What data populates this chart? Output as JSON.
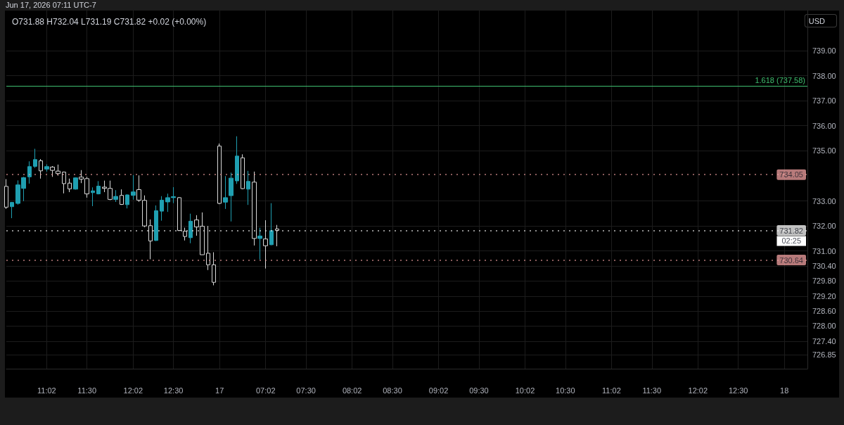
{
  "chart_data": {
    "type": "candlestick",
    "title": "O731.88 H732.04 L731.19 C731.82 +0.02 (+0.00%)",
    "categories": [
      null,
      null,
      null,
      null,
      null,
      null,
      null,
      "11:02",
      null,
      null,
      null,
      null,
      null,
      null,
      "11:30",
      null,
      null,
      null,
      null,
      null,
      null,
      null,
      "12:02",
      null,
      null,
      null,
      null,
      null,
      null,
      "12:30",
      null,
      null,
      null,
      null,
      null,
      null,
      null,
      "17",
      null,
      null,
      null,
      null,
      null,
      null,
      null,
      "07:02",
      null,
      null,
      null,
      null,
      null,
      null,
      "07:30",
      null,
      null,
      null,
      null,
      null,
      null,
      null,
      "08:02",
      null,
      null,
      null,
      null,
      null,
      null,
      "08:30",
      null,
      null,
      null,
      null,
      null,
      null,
      null,
      "09:02",
      null,
      null,
      null,
      null,
      null,
      null,
      "09:30",
      null,
      null,
      null,
      null,
      null,
      null,
      null,
      "10:02",
      null,
      null,
      null,
      null,
      null,
      null,
      "10:30",
      null,
      null,
      null,
      null,
      null,
      null,
      null,
      "11:02",
      null,
      null,
      null,
      null,
      null,
      null,
      "11:30",
      null,
      null,
      null,
      null,
      null,
      null,
      null,
      "12:02",
      null,
      null,
      null,
      null,
      null,
      null,
      "12:30",
      null,
      null,
      null,
      null,
      null,
      null,
      null,
      "18",
      null,
      null,
      null,
      null
    ],
    "ohlc": [
      [
        733.58,
        733.87,
        732.68,
        732.75
      ],
      [
        732.77,
        732.96,
        732.31,
        732.94
      ],
      [
        732.9,
        733.82,
        732.85,
        733.64
      ],
      [
        733.5,
        733.96,
        732.99,
        733.93
      ],
      [
        733.96,
        734.58,
        733.69,
        734.37
      ],
      [
        734.38,
        735.08,
        734.32,
        734.65
      ],
      [
        734.6,
        734.67,
        733.89,
        734.2
      ],
      [
        734.27,
        734.46,
        734.17,
        734.37
      ],
      [
        734.35,
        734.39,
        733.96,
        734.22
      ],
      [
        734.19,
        734.45,
        734.01,
        734.09
      ],
      [
        734.15,
        734.17,
        733.3,
        733.69
      ],
      [
        733.71,
        733.89,
        733.35,
        733.48
      ],
      [
        733.47,
        733.94,
        733.45,
        733.92
      ],
      [
        733.95,
        734.23,
        733.71,
        733.87
      ],
      [
        733.89,
        733.96,
        733.13,
        733.28
      ],
      [
        733.33,
        733.54,
        732.79,
        733.4
      ],
      [
        733.28,
        733.79,
        733.26,
        733.59
      ],
      [
        733.55,
        733.81,
        733.35,
        733.5
      ],
      [
        733.5,
        733.81,
        733.03,
        733.06
      ],
      [
        733.06,
        733.43,
        732.96,
        733.18
      ],
      [
        733.22,
        733.46,
        732.84,
        732.86
      ],
      [
        732.85,
        733.26,
        732.7,
        733.24
      ],
      [
        733.22,
        734.03,
        733.05,
        733.36
      ],
      [
        733.45,
        734.02,
        732.96,
        733.03
      ],
      [
        733.02,
        733.22,
        731.95,
        732.0
      ],
      [
        732.01,
        732.26,
        730.67,
        731.4
      ],
      [
        731.42,
        732.82,
        731.4,
        732.61
      ],
      [
        732.59,
        733.19,
        732.21,
        733.03
      ],
      [
        732.96,
        733.29,
        732.56,
        733.13
      ],
      [
        733.13,
        733.55,
        732.91,
        733.17
      ],
      [
        733.13,
        733.15,
        731.79,
        731.82
      ],
      [
        731.79,
        731.93,
        731.42,
        731.58
      ],
      [
        731.53,
        732.49,
        731.31,
        732.19
      ],
      [
        732.24,
        732.43,
        731.61,
        731.96
      ],
      [
        731.99,
        732.54,
        730.85,
        730.85
      ],
      [
        730.91,
        732.0,
        730.24,
        730.45
      ],
      [
        730.45,
        730.95,
        729.63,
        729.75
      ],
      [
        735.19,
        735.29,
        732.87,
        732.9
      ],
      [
        732.95,
        733.99,
        732.68,
        733.13
      ],
      [
        733.21,
        734.13,
        732.18,
        733.91
      ],
      [
        733.8,
        735.58,
        733.68,
        734.79
      ],
      [
        734.72,
        734.86,
        733.47,
        733.49
      ],
      [
        733.47,
        734.2,
        732.84,
        733.78
      ],
      [
        733.75,
        734.17,
        731.22,
        731.5
      ],
      [
        731.5,
        731.93,
        730.66,
        731.6
      ],
      [
        731.48,
        732.23,
        730.3,
        731.21
      ],
      [
        731.25,
        732.91,
        731.23,
        731.81
      ],
      [
        731.88,
        732.04,
        731.19,
        731.82
      ],
      null,
      null,
      null,
      null,
      null,
      null,
      null,
      null,
      null,
      null,
      null,
      null,
      null,
      null,
      null,
      null,
      null,
      null,
      null,
      null,
      null,
      null,
      null,
      null,
      null,
      null,
      null,
      null,
      null,
      null,
      null,
      null,
      null,
      null,
      null,
      null,
      null,
      null,
      null,
      null,
      null,
      null,
      null,
      null,
      null,
      null,
      null,
      null,
      null,
      null,
      null,
      null,
      null,
      null,
      null,
      null,
      null,
      null,
      null,
      null,
      null,
      null,
      null,
      null,
      null,
      null,
      null,
      null,
      null,
      null,
      null,
      null,
      null,
      null,
      null,
      null,
      null,
      null,
      null,
      null,
      null,
      null,
      null,
      null,
      null,
      null,
      null,
      null,
      null,
      null,
      null,
      null
    ],
    "colors": [
      "#d9d9d9",
      "#1f9fb1",
      "#1f9fb1",
      "#1f9fb1",
      "#1f9fb1",
      "#1f9fb1",
      "#d9d9d9",
      "#1f9fb1",
      "#d9d9d9",
      "#d9d9d9",
      "#d9d9d9",
      "#d9d9d9",
      "#1f9fb1",
      "#d9d9d9",
      "#d9d9d9",
      "#1f9fb1",
      "#1f9fb1",
      "#d9d9d9",
      "#d9d9d9",
      "#1f9fb1",
      "#d9d9d9",
      "#1f9fb1",
      "#1f9fb1",
      "#d9d9d9",
      "#d9d9d9",
      "#d9d9d9",
      "#1f9fb1",
      "#1f9fb1",
      "#1f9fb1",
      "#1f9fb1",
      "#d9d9d9",
      "#d9d9d9",
      "#1f9fb1",
      "#d9d9d9",
      "#d9d9d9",
      "#d9d9d9",
      "#d9d9d9",
      "#d9d9d9",
      "#1f9fb1",
      "#1f9fb1",
      "#1f9fb1",
      "#d9d9d9",
      "#1f9fb1",
      "#d9d9d9",
      "#1f9fb1",
      "#d9d9d9",
      "#1f9fb1",
      "#d9d9d9",
      null,
      null,
      null,
      null,
      null,
      null,
      null,
      null,
      null,
      null,
      null,
      null,
      null,
      null,
      null,
      null,
      null,
      null,
      null,
      null,
      null,
      null,
      null,
      null,
      null,
      null,
      null,
      null,
      null,
      null,
      null,
      null,
      null,
      null,
      null,
      null,
      null,
      null,
      null,
      null,
      null,
      null,
      null,
      null,
      null,
      null,
      null,
      null,
      null,
      null,
      null,
      null,
      null,
      null,
      null,
      null,
      null,
      null,
      null,
      null,
      null,
      null,
      null,
      null,
      null,
      null,
      null,
      null,
      null,
      null,
      null,
      null,
      null,
      null,
      null,
      null,
      null,
      null,
      null,
      null,
      null,
      null,
      null,
      null,
      null,
      null,
      null,
      null,
      null,
      null,
      null,
      null
    ],
    "ylim": [
      726.3,
      740.6
    ],
    "yticks": [
      {
        "value": 739,
        "label": "739.00"
      },
      {
        "value": 738,
        "label": "738.00"
      },
      {
        "value": 737,
        "label": "737.00"
      },
      {
        "value": 736,
        "label": "736.00"
      },
      {
        "value": 735,
        "label": "735.00"
      },
      {
        "value": 733,
        "label": "733.00"
      },
      {
        "value": 732,
        "label": "732.00"
      },
      {
        "value": 731,
        "label": "731.00"
      },
      {
        "value": 730.4,
        "label": "730.40"
      },
      {
        "value": 729.8,
        "label": "729.80"
      },
      {
        "value": 729.2,
        "label": "729.20"
      },
      {
        "value": 728.6,
        "label": "728.60"
      },
      {
        "value": 728,
        "label": "728.00"
      },
      {
        "value": 727.4,
        "label": "727.40"
      },
      {
        "value": 726.85,
        "label": "726.85"
      }
    ],
    "grid": true,
    "ref_lines": [
      {
        "axis": "y",
        "value": 737.58,
        "label": "1.618 (737.58)",
        "color": "#3fbf6f",
        "line_style": "solid"
      },
      {
        "axis": "y",
        "value": 734.05,
        "label": "734.05",
        "color": "#f4a3a3",
        "line_style": "dotted"
      },
      {
        "axis": "y",
        "value": 730.64,
        "label": "730.64",
        "color": "#f4a3a3",
        "line_style": "dotted"
      },
      {
        "axis": "y",
        "value": 731.82,
        "label": "731.82",
        "color": "#ffffff",
        "line_style": "dotted"
      }
    ],
    "annotations": [
      "Jun 17, 2026 07:11 UTC-7",
      "USD",
      {
        "text": "02:25",
        "y": 731.82
      }
    ]
  }
}
